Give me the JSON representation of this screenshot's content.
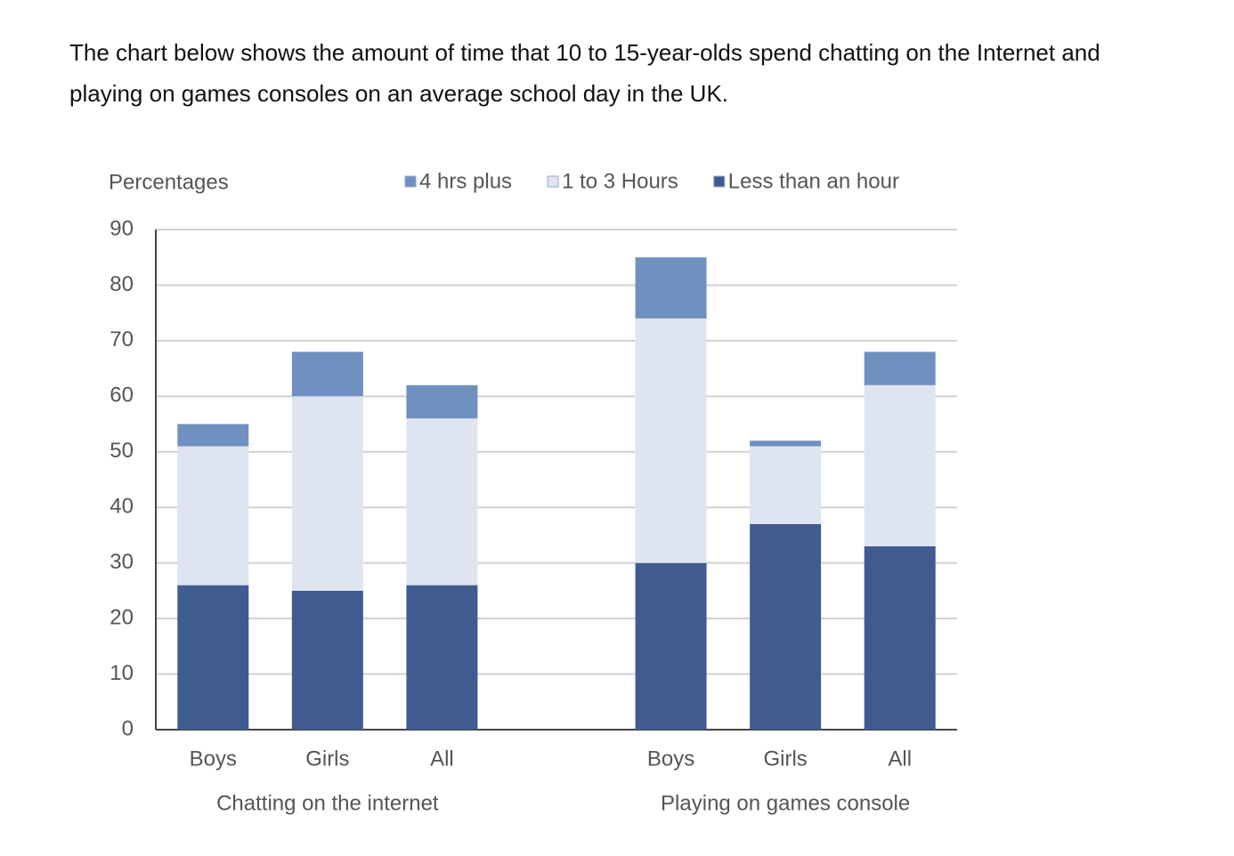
{
  "intro": "The chart below shows the amount of time that 10 to 15-year-olds spend chatting on the Internet and playing on games consoles on an average school day in the UK.",
  "chart_data": {
    "type": "stacked-bar",
    "y_label": "Percentages",
    "categories": [
      "Boys",
      "Girls",
      "All",
      "Boys",
      "Girls",
      "All"
    ],
    "groups": [
      "Chatting on the internet",
      "Playing on games console"
    ],
    "series": [
      {
        "name": "4 hrs plus",
        "color": "#7090c0",
        "values": [
          4,
          8,
          6,
          11,
          1,
          6
        ]
      },
      {
        "name": "1 to 3 Hours",
        "color": "#dfe5f0",
        "values": [
          25,
          35,
          30,
          44,
          14,
          29
        ]
      },
      {
        "name": "Less than an hour",
        "color": "#3f5b90",
        "values": [
          26,
          25,
          26,
          30,
          37,
          33
        ]
      }
    ],
    "ylim": [
      0,
      90
    ],
    "yticks": [
      0,
      10,
      20,
      30,
      40,
      50,
      60,
      70,
      80,
      90
    ],
    "grid": true
  }
}
